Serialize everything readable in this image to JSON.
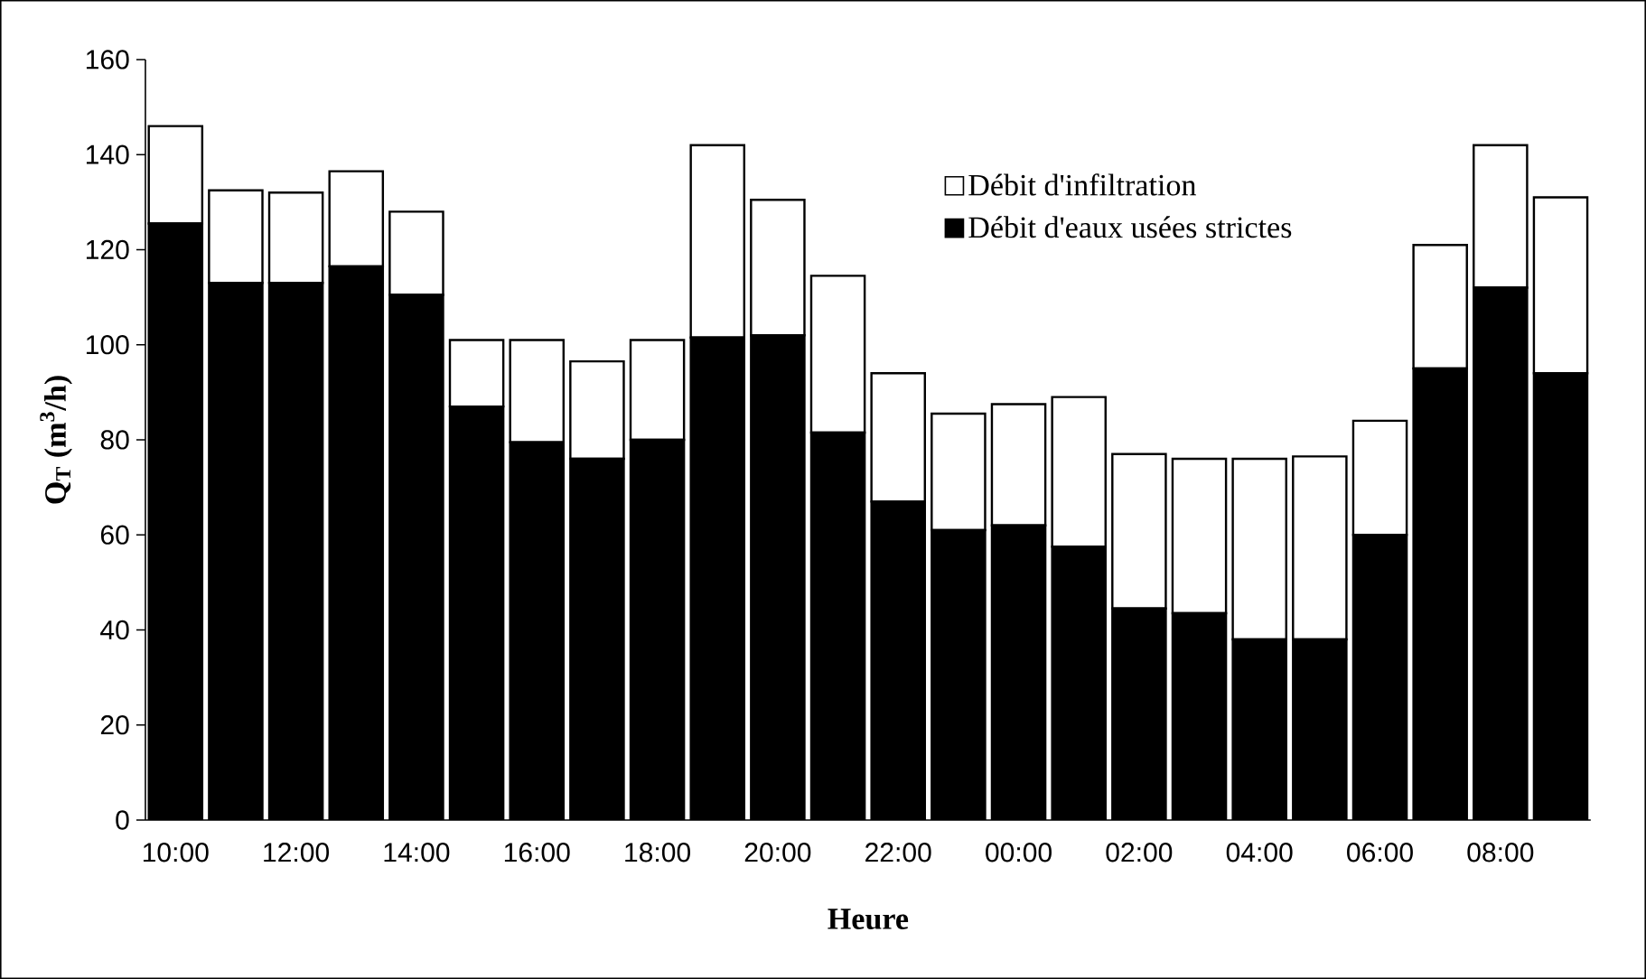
{
  "chart_data": {
    "type": "bar",
    "stacked": true,
    "xlabel": "Heure",
    "ylabel": "Q$_{T}$ (m$^{3}$/h)",
    "categories": [
      "10:00",
      null,
      "12:00",
      null,
      "14:00",
      null,
      "16:00",
      null,
      "18:00",
      null,
      "20:00",
      null,
      "22:00",
      null,
      "00:00",
      null,
      "02:00",
      null,
      "04:00",
      null,
      "06:00",
      null,
      "08:00",
      null
    ],
    "series": [
      {
        "name": "Débit d'eaux usées strictes",
        "color": "#000000",
        "values": [
          125.5,
          113,
          113,
          116.5,
          110.5,
          87,
          79.5,
          76,
          80,
          101.5,
          102,
          81.5,
          67,
          61,
          62,
          57.5,
          44.5,
          43.5,
          38,
          38,
          60,
          95,
          112,
          94
        ]
      },
      {
        "name": "Débit d'infiltration",
        "color": "#ffffff",
        "values": [
          20.5,
          19.5,
          19,
          20,
          17.5,
          14,
          21.5,
          20.5,
          21,
          40.5,
          28.5,
          33,
          27,
          24.5,
          25.5,
          31.5,
          32.5,
          32.5,
          38,
          38.5,
          24,
          26,
          30,
          37
        ]
      }
    ],
    "ylim": [
      0,
      160
    ],
    "yticks": [
      0,
      20,
      40,
      60,
      80,
      100,
      120,
      140,
      160
    ],
    "legend": "top right"
  }
}
